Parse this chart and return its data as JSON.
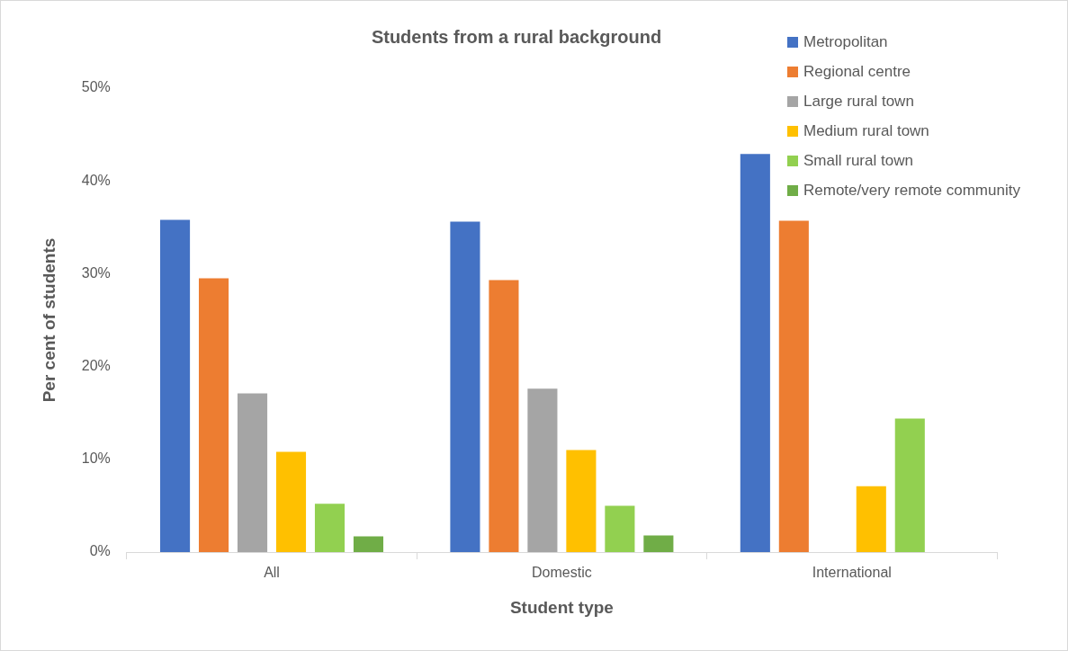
{
  "chart_data": {
    "type": "bar",
    "title": "Students from a rural background",
    "xlabel": "Student type",
    "ylabel": "Per cent of students",
    "categories": [
      "All",
      "Domestic",
      "International"
    ],
    "series": [
      {
        "name": "Metropolitan",
        "color": "#4472c4",
        "values": [
          35.8,
          35.6,
          42.9
        ]
      },
      {
        "name": "Regional centre",
        "color": "#ed7d31",
        "values": [
          29.5,
          29.3,
          35.7
        ]
      },
      {
        "name": "Large rural town",
        "color": "#a5a5a5",
        "values": [
          17.1,
          17.6,
          0
        ]
      },
      {
        "name": "Medium rural town",
        "color": "#ffc000",
        "values": [
          10.8,
          11.0,
          7.1
        ]
      },
      {
        "name": "Small rural town",
        "color": "#92d050",
        "values": [
          5.2,
          5.0,
          14.4
        ]
      },
      {
        "name": "Remote/very remote community",
        "color": "#70ad47",
        "values": [
          1.7,
          1.8,
          0
        ]
      }
    ],
    "ylim": [
      0,
      50
    ],
    "yticks": [
      {
        "value": 0,
        "label": "0%"
      },
      {
        "value": 10,
        "label": "10%"
      },
      {
        "value": 20,
        "label": "20%"
      },
      {
        "value": 30,
        "label": "30%"
      },
      {
        "value": 40,
        "label": "40%"
      },
      {
        "value": 50,
        "label": "50%"
      }
    ],
    "grid": false,
    "legend": "top right"
  }
}
